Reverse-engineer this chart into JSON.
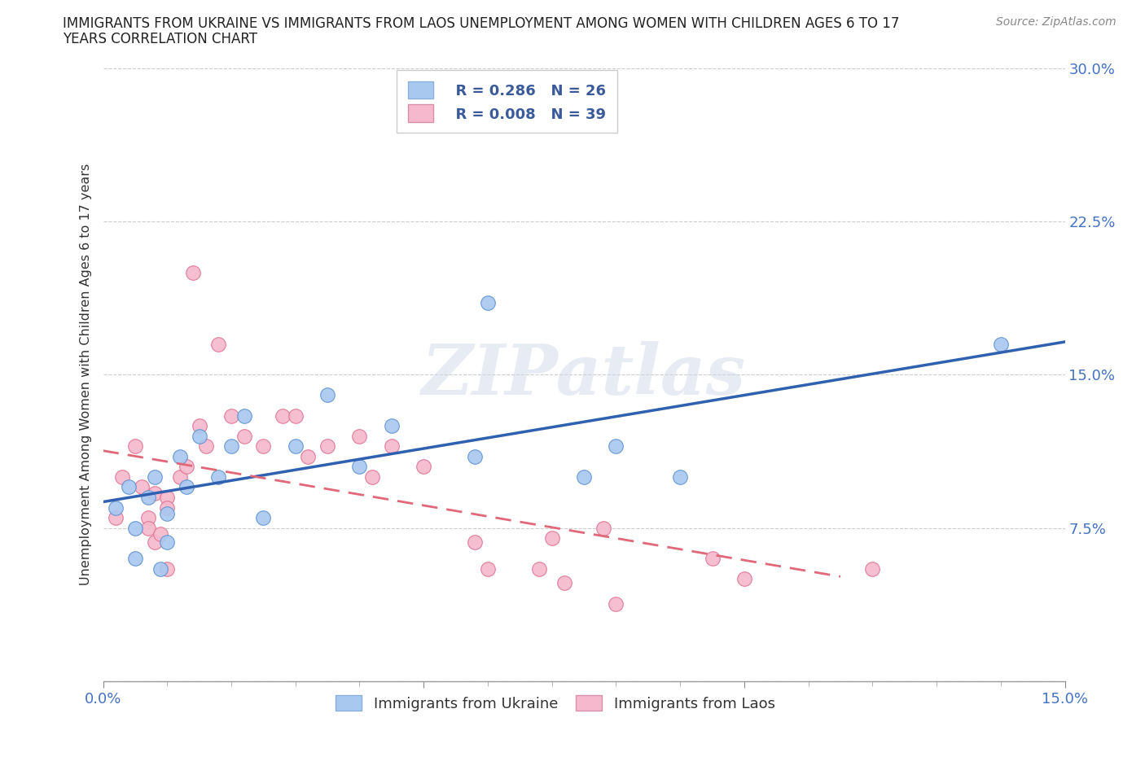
{
  "title_line1": "IMMIGRANTS FROM UKRAINE VS IMMIGRANTS FROM LAOS UNEMPLOYMENT AMONG WOMEN WITH CHILDREN AGES 6 TO 17",
  "title_line2": "YEARS CORRELATION CHART",
  "source": "Source: ZipAtlas.com",
  "ylabel": "Unemployment Among Women with Children Ages 6 to 17 years",
  "xlim": [
    0.0,
    0.15
  ],
  "ylim": [
    0.0,
    0.3
  ],
  "xticks": [
    0.0,
    0.05,
    0.1,
    0.15
  ],
  "xtick_labels": [
    "0.0%",
    "",
    "",
    "15.0%"
  ],
  "yticks": [
    0.0,
    0.075,
    0.15,
    0.225,
    0.3
  ],
  "ytick_labels": [
    "",
    "7.5%",
    "15.0%",
    "22.5%",
    "30.0%"
  ],
  "ukraine_color": "#a8c8f0",
  "ukraine_edge_color": "#5a90d0",
  "laos_color": "#f5b8cc",
  "laos_edge_color": "#e07090",
  "ukraine_line_color": "#3060b0",
  "laos_line_color": "#e06878",
  "legend_R_ukraine": "R = 0.286",
  "legend_N_ukraine": "N = 26",
  "legend_R_laos": "R = 0.008",
  "legend_N_laos": "N = 39",
  "watermark": "ZIPatlas",
  "ukraine_x": [
    0.002,
    0.004,
    0.005,
    0.005,
    0.007,
    0.008,
    0.009,
    0.01,
    0.01,
    0.012,
    0.013,
    0.015,
    0.018,
    0.02,
    0.022,
    0.025,
    0.03,
    0.035,
    0.04,
    0.045,
    0.058,
    0.06,
    0.075,
    0.08,
    0.09,
    0.14
  ],
  "ukraine_y": [
    0.085,
    0.095,
    0.075,
    0.06,
    0.09,
    0.1,
    0.055,
    0.068,
    0.082,
    0.11,
    0.095,
    0.12,
    0.1,
    0.115,
    0.13,
    0.08,
    0.115,
    0.14,
    0.105,
    0.125,
    0.11,
    0.185,
    0.1,
    0.115,
    0.1,
    0.165
  ],
  "laos_x": [
    0.002,
    0.003,
    0.005,
    0.006,
    0.007,
    0.007,
    0.008,
    0.008,
    0.009,
    0.01,
    0.01,
    0.01,
    0.012,
    0.013,
    0.014,
    0.015,
    0.016,
    0.018,
    0.02,
    0.022,
    0.025,
    0.028,
    0.03,
    0.032,
    0.035,
    0.04,
    0.042,
    0.045,
    0.05,
    0.058,
    0.06,
    0.068,
    0.07,
    0.072,
    0.078,
    0.08,
    0.095,
    0.1,
    0.12
  ],
  "laos_y": [
    0.08,
    0.1,
    0.115,
    0.095,
    0.08,
    0.075,
    0.092,
    0.068,
    0.072,
    0.09,
    0.085,
    0.055,
    0.1,
    0.105,
    0.2,
    0.125,
    0.115,
    0.165,
    0.13,
    0.12,
    0.115,
    0.13,
    0.13,
    0.11,
    0.115,
    0.12,
    0.1,
    0.115,
    0.105,
    0.068,
    0.055,
    0.055,
    0.07,
    0.048,
    0.075,
    0.038,
    0.06,
    0.05,
    0.055
  ],
  "background_color": "#ffffff",
  "grid_color": "#cccccc",
  "tick_color": "#4472c4",
  "label_color": "#333333"
}
